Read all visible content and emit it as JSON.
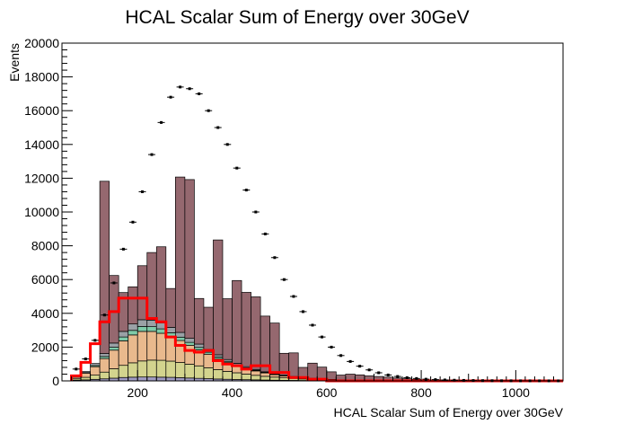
{
  "chart_data": {
    "type": "bar",
    "title": "HCAL Scalar Sum of Energy over 30GeV",
    "xlabel": "HCAL Scalar Sum of Energy over 30GeV",
    "ylabel": "Events",
    "xlim": [
      40,
      1100
    ],
    "ylim": [
      0,
      20000
    ],
    "bin_width": 20,
    "x_ticks": [
      200,
      400,
      600,
      800,
      1000
    ],
    "y_ticks": [
      0,
      2000,
      4000,
      6000,
      8000,
      10000,
      12000,
      14000,
      16000,
      18000,
      20000
    ],
    "x_tick_labels": [
      "200",
      "400",
      "600",
      "800",
      "1000"
    ],
    "y_tick_labels": [
      "0",
      "2000",
      "4000",
      "6000",
      "8000",
      "10000",
      "12000",
      "14000",
      "16000",
      "18000",
      "20000"
    ],
    "bin_edges_start": 60,
    "stack_series": [
      {
        "color": "#a09bc3",
        "values": [
          40,
          60,
          90,
          120,
          160,
          200,
          220,
          230,
          230,
          220,
          210,
          190,
          170,
          150,
          130,
          110,
          95,
          80,
          70,
          60,
          50,
          42,
          35,
          30,
          25,
          20,
          16,
          13,
          10,
          8,
          6,
          5,
          4,
          3,
          2,
          2,
          1,
          1,
          1,
          1,
          0,
          0,
          0,
          0,
          0,
          0,
          0,
          0,
          0,
          0,
          0,
          0
        ]
      },
      {
        "color": "#d3d48e",
        "values": [
          80,
          150,
          250,
          400,
          560,
          720,
          850,
          950,
          1000,
          1000,
          960,
          900,
          820,
          740,
          650,
          560,
          470,
          400,
          330,
          270,
          220,
          180,
          145,
          115,
          90,
          70,
          55,
          42,
          32,
          25,
          19,
          14,
          10,
          8,
          6,
          4,
          3,
          2,
          2,
          1,
          1,
          1,
          0,
          0,
          0,
          0,
          0,
          0,
          0,
          0,
          0,
          0
        ]
      },
      {
        "color": "#e9b98d",
        "values": [
          100,
          250,
          500,
          800,
          1100,
          1450,
          1650,
          1750,
          1700,
          1600,
          1450,
          1300,
          1120,
          950,
          800,
          650,
          520,
          420,
          330,
          260,
          200,
          150,
          115,
          85,
          62,
          45,
          33,
          24,
          17,
          12,
          9,
          6,
          4,
          3,
          2,
          1,
          1,
          1,
          0,
          0,
          0,
          0,
          0,
          0,
          0,
          0,
          0,
          0,
          0,
          0,
          0,
          0
        ]
      },
      {
        "color": "#7ecaa8",
        "values": [
          10,
          30,
          70,
          120,
          170,
          230,
          270,
          290,
          280,
          260,
          230,
          200,
          170,
          140,
          115,
          90,
          72,
          57,
          44,
          34,
          26,
          20,
          15,
          11,
          8,
          6,
          4,
          3,
          2,
          2,
          1,
          1,
          1,
          0,
          0,
          0,
          0,
          0,
          0,
          0,
          0,
          0,
          0,
          0,
          0,
          0,
          0,
          0,
          0,
          0,
          0,
          0
        ]
      },
      {
        "color": "#9aa1a6",
        "values": [
          30,
          60,
          120,
          180,
          250,
          330,
          380,
          400,
          390,
          360,
          320,
          280,
          240,
          200,
          165,
          135,
          108,
          86,
          67,
          52,
          40,
          31,
          23,
          17,
          13,
          9,
          7,
          5,
          4,
          3,
          2,
          1,
          1,
          1,
          0,
          0,
          0,
          0,
          0,
          0,
          0,
          0,
          0,
          0,
          0,
          0,
          0,
          0,
          0,
          0,
          0,
          0
        ]
      },
      {
        "color": "#95686f",
        "values": [
          0,
          0,
          0,
          10200,
          4000,
          2300,
          2200,
          3200,
          4000,
          4500,
          2300,
          9200,
          9400,
          2700,
          2500,
          6800,
          3600,
          4900,
          4400,
          4300,
          3300,
          3000,
          1300,
          1400,
          600,
          900,
          700,
          450,
          280,
          350,
          320,
          270,
          240,
          210,
          160,
          120,
          80,
          50,
          30,
          20,
          10,
          0,
          0,
          0,
          0,
          0,
          0,
          0,
          0,
          0,
          0,
          0
        ]
      }
    ],
    "overlay_line": {
      "color": "#ff0000",
      "values": [
        300,
        1100,
        2200,
        3500,
        4100,
        4900,
        4900,
        4900,
        3700,
        3500,
        2600,
        2100,
        1800,
        1700,
        1800,
        1200,
        1000,
        900,
        700,
        900,
        900,
        500,
        500,
        200,
        200,
        100,
        100,
        0,
        0,
        0,
        0,
        0,
        0,
        0,
        0,
        0,
        0,
        0,
        0,
        0,
        0,
        0,
        0,
        0,
        0,
        0,
        0,
        0,
        0,
        0,
        0,
        0
      ]
    },
    "data_points": {
      "color": "#000000",
      "values": [
        700,
        1300,
        2400,
        3900,
        5800,
        7800,
        9400,
        11200,
        13400,
        15300,
        16800,
        17400,
        17300,
        17000,
        16000,
        15000,
        14000,
        12600,
        11300,
        10000,
        8700,
        7300,
        6000,
        5000,
        4100,
        3300,
        2600,
        2000,
        1500,
        1150,
        870,
        650,
        480,
        350,
        260,
        190,
        140,
        100,
        75,
        55,
        40,
        30,
        22,
        16,
        12,
        9,
        7,
        5,
        4,
        3,
        2,
        2
      ]
    }
  }
}
